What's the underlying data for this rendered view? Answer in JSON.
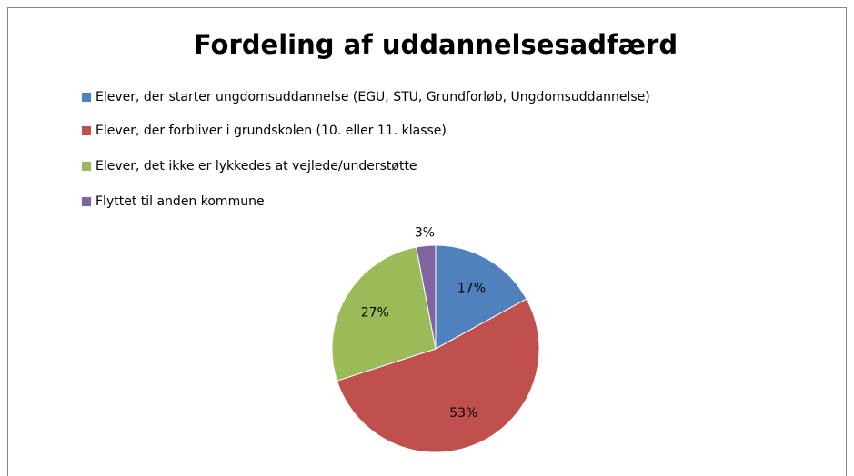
{
  "chart_data": {
    "type": "pie",
    "title": "Fordeling af uddannelsesadfærd",
    "categories": [
      "Elever, der starter ungdomsuddannelse (EGU, STU, Grundforløb, Ungdomsuddannelse)",
      "Elever, der forbliver i grundskolen (10. eller 11. klasse)",
      "Elever, det ikke er lykkedes at vejlede/understøtte",
      "Flyttet til anden kommune"
    ],
    "values": [
      17,
      53,
      27,
      3
    ],
    "value_labels": [
      "17%",
      "53%",
      "27%",
      "3%"
    ],
    "colors": [
      "#4f81bd",
      "#c0504d",
      "#9bbb59",
      "#8064a2"
    ],
    "legend": "top-left"
  }
}
